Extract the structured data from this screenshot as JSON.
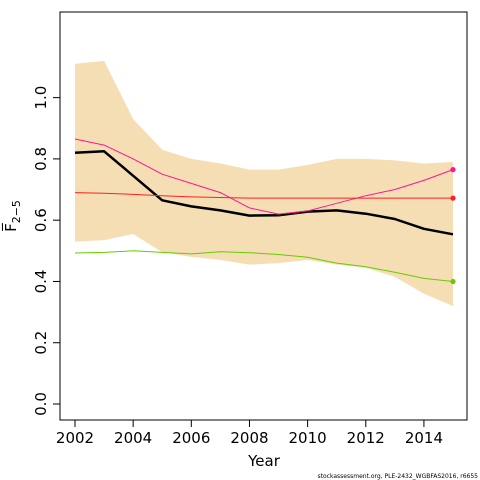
{
  "chart_data": {
    "type": "line",
    "xlabel": "Year",
    "ylabel": "F̅",
    "ylabel_subscript": "2−5",
    "xlim": [
      2002,
      2015
    ],
    "ylim": [
      0.0,
      1.1
    ],
    "x_ticks": [
      2002,
      2004,
      2006,
      2008,
      2010,
      2012,
      2014
    ],
    "y_ticks": [
      0.0,
      0.2,
      0.4,
      0.6,
      0.8,
      1.0
    ],
    "x_tick_labels": [
      "2002",
      "2004",
      "2006",
      "2008",
      "2010",
      "2012",
      "2014"
    ],
    "y_tick_labels": [
      "0.0",
      "0.2",
      "0.4",
      "0.6",
      "0.8",
      "1.0"
    ],
    "grid": false,
    "x": [
      2002,
      2003,
      2004,
      2005,
      2006,
      2007,
      2008,
      2009,
      2010,
      2011,
      2012,
      2013,
      2014,
      2015
    ],
    "confidence_band": {
      "color": "#f5deb3",
      "upper": [
        1.11,
        1.12,
        0.93,
        0.83,
        0.8,
        0.785,
        0.765,
        0.765,
        0.78,
        0.8,
        0.8,
        0.795,
        0.785,
        0.79
      ],
      "lower": [
        0.53,
        0.535,
        0.555,
        0.495,
        0.48,
        0.47,
        0.455,
        0.46,
        0.47,
        0.455,
        0.445,
        0.415,
        0.36,
        0.32
      ]
    },
    "series": [
      {
        "color": "#000000",
        "width": 2.5,
        "values": [
          0.82,
          0.825,
          0.745,
          0.665,
          0.645,
          0.632,
          0.615,
          0.616,
          0.628,
          0.632,
          0.621,
          0.604,
          0.572,
          0.554
        ],
        "end_marker": false
      },
      {
        "color": "#ff1493",
        "width": 1,
        "values": [
          0.865,
          0.845,
          0.8,
          0.75,
          0.72,
          0.69,
          0.64,
          0.62,
          0.63,
          0.655,
          0.68,
          0.7,
          0.73,
          0.765
        ],
        "end_marker": true
      },
      {
        "color": "#ff2020",
        "width": 1,
        "values": [
          0.69,
          0.688,
          0.684,
          0.68,
          0.676,
          0.674,
          0.672,
          0.672,
          0.672,
          0.672,
          0.672,
          0.672,
          0.672,
          0.672
        ],
        "end_marker": true
      },
      {
        "color": "#66cc00",
        "width": 1,
        "values": [
          0.493,
          0.495,
          0.5,
          0.495,
          0.49,
          0.497,
          0.494,
          0.488,
          0.479,
          0.46,
          0.448,
          0.43,
          0.41,
          0.4
        ],
        "end_marker": true
      }
    ]
  },
  "credit": "stockassessment.org, PLE-2432_WGBFAS2016, r6655"
}
